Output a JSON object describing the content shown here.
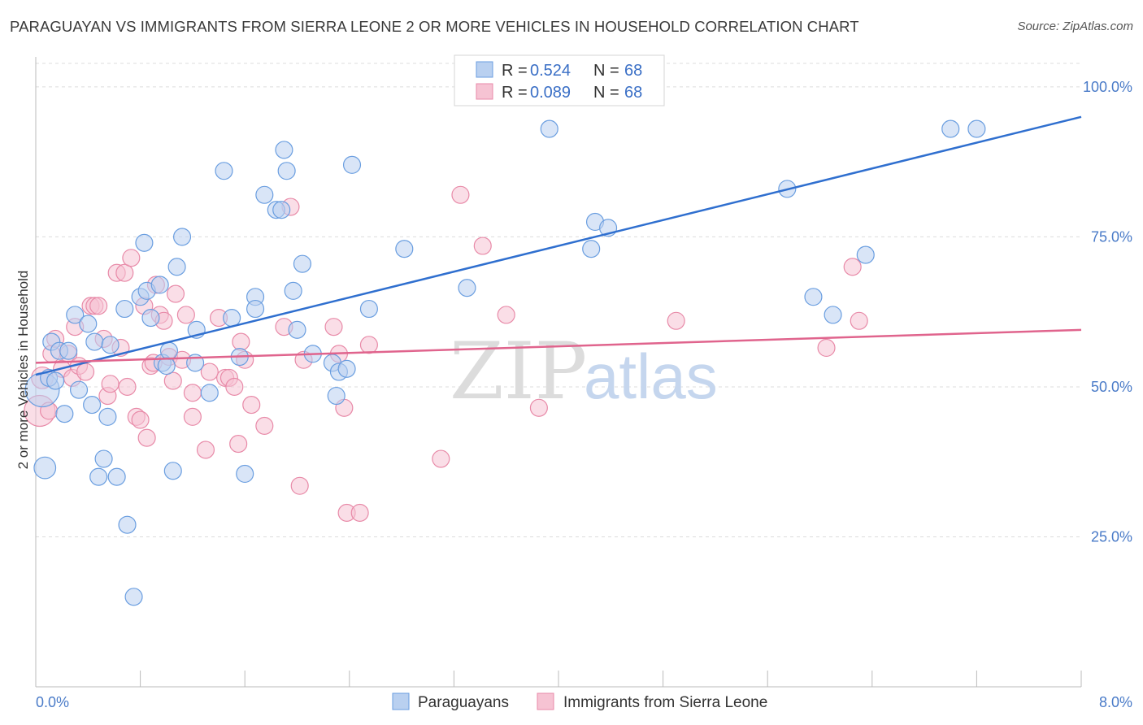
{
  "title": "PARAGUAYAN VS IMMIGRANTS FROM SIERRA LEONE 2 OR MORE VEHICLES IN HOUSEHOLD CORRELATION CHART",
  "source": "Source: ZipAtlas.com",
  "watermark": {
    "zip": "ZIP",
    "atlas": "atlas"
  },
  "colors": {
    "blue": "#6a9ee0",
    "blue_fill": "#b9d0f0",
    "blue_line": "#2f6fcf",
    "pink": "#e88aa8",
    "pink_fill": "#f6c3d3",
    "pink_line": "#e0648d",
    "axis_text": "#4a7bc8",
    "grid": "#d9d9d9"
  },
  "legend": {
    "items": [
      {
        "r_label": "R =",
        "r_value": "0.524",
        "n_label": "N =",
        "n_value": "68"
      },
      {
        "r_label": "R =",
        "r_value": "0.089",
        "n_label": "N =",
        "n_value": "68"
      }
    ]
  },
  "bottom_legend": [
    "Paraguayans",
    "Immigrants from Sierra Leone"
  ],
  "chart_data": {
    "type": "scatter",
    "title": "PARAGUAYAN VS IMMIGRANTS FROM SIERRA LEONE 2 OR MORE VEHICLES IN HOUSEHOLD CORRELATION CHART",
    "xlabel": "",
    "ylabel": "2 or more Vehicles in Household",
    "xlim": [
      0,
      8
    ],
    "ylim": [
      0,
      105
    ],
    "x_tick_labels": [
      "0.0%",
      "8.0%"
    ],
    "y_ticks": [
      25,
      50,
      75,
      100
    ],
    "y_tick_labels": [
      "25.0%",
      "50.0%",
      "75.0%",
      "100.0%"
    ],
    "grid": true,
    "legend_position": "top-center",
    "series": [
      {
        "name": "Paraguayans",
        "color": "#6a9ee0",
        "trend": {
          "x": [
            0,
            8
          ],
          "y": [
            52.0,
            95.0
          ]
        },
        "points": [
          [
            0.05,
            49.5,
            22
          ],
          [
            0.07,
            36.5,
            14
          ],
          [
            0.1,
            51.5,
            11
          ],
          [
            0.12,
            57.5,
            11
          ],
          [
            0.15,
            51,
            11
          ],
          [
            0.18,
            56,
            11
          ],
          [
            0.22,
            45.5,
            11
          ],
          [
            0.25,
            56,
            11
          ],
          [
            0.3,
            62,
            11
          ],
          [
            0.33,
            49.5,
            11
          ],
          [
            0.4,
            60.5,
            11
          ],
          [
            0.43,
            47,
            11
          ],
          [
            0.45,
            57.5,
            11
          ],
          [
            0.48,
            35,
            11
          ],
          [
            0.52,
            38,
            11
          ],
          [
            0.55,
            45,
            11
          ],
          [
            0.57,
            57,
            11
          ],
          [
            0.62,
            35,
            11
          ],
          [
            0.68,
            63,
            11
          ],
          [
            0.7,
            27,
            11
          ],
          [
            0.75,
            15,
            11
          ],
          [
            0.8,
            65,
            11
          ],
          [
            0.83,
            74,
            11
          ],
          [
            0.85,
            66,
            11
          ],
          [
            0.88,
            61.5,
            11
          ],
          [
            0.95,
            67,
            11
          ],
          [
            0.97,
            54,
            11
          ],
          [
            1.0,
            53.5,
            11
          ],
          [
            1.02,
            56,
            11
          ],
          [
            1.05,
            36,
            11
          ],
          [
            1.08,
            70,
            11
          ],
          [
            1.12,
            75,
            11
          ],
          [
            1.22,
            54,
            11
          ],
          [
            1.23,
            59.5,
            11
          ],
          [
            1.33,
            49,
            11
          ],
          [
            1.44,
            86,
            11
          ],
          [
            1.5,
            61.5,
            11
          ],
          [
            1.56,
            55,
            11
          ],
          [
            1.6,
            35.5,
            11
          ],
          [
            1.68,
            65,
            11
          ],
          [
            1.68,
            63,
            11
          ],
          [
            1.75,
            82,
            11
          ],
          [
            1.84,
            79.5,
            11
          ],
          [
            1.88,
            79.5,
            11
          ],
          [
            1.9,
            89.5,
            11
          ],
          [
            1.92,
            86,
            11
          ],
          [
            1.97,
            66,
            11
          ],
          [
            2.0,
            59.5,
            11
          ],
          [
            2.04,
            70.5,
            11
          ],
          [
            2.12,
            55.5,
            11
          ],
          [
            2.27,
            54,
            11
          ],
          [
            2.3,
            48.5,
            11
          ],
          [
            2.32,
            52.5,
            11
          ],
          [
            2.38,
            53,
            11
          ],
          [
            2.42,
            87,
            11
          ],
          [
            2.55,
            63,
            11
          ],
          [
            2.82,
            73,
            11
          ],
          [
            3.3,
            66.5,
            11
          ],
          [
            3.93,
            93,
            11
          ],
          [
            4.28,
            77.5,
            11
          ],
          [
            4.38,
            76.5,
            11
          ],
          [
            4.25,
            73,
            11
          ],
          [
            5.75,
            83,
            11
          ],
          [
            5.95,
            65,
            11
          ],
          [
            6.1,
            62,
            11
          ],
          [
            6.35,
            72,
            11
          ],
          [
            7.0,
            93,
            11
          ],
          [
            7.2,
            93,
            11
          ]
        ]
      },
      {
        "name": "Immigrants from Sierra Leone",
        "color": "#e88aa8",
        "trend": {
          "x": [
            0,
            8
          ],
          "y": [
            54.0,
            59.5
          ]
        },
        "points": [
          [
            0.03,
            46,
            20
          ],
          [
            0.05,
            51.5,
            14
          ],
          [
            0.1,
            46,
            11
          ],
          [
            0.12,
            55.5,
            11
          ],
          [
            0.15,
            58,
            11
          ],
          [
            0.2,
            53,
            11
          ],
          [
            0.25,
            55.5,
            11
          ],
          [
            0.28,
            51.5,
            11
          ],
          [
            0.3,
            60,
            11
          ],
          [
            0.33,
            53.5,
            11
          ],
          [
            0.38,
            52.5,
            11
          ],
          [
            0.42,
            63.5,
            11
          ],
          [
            0.45,
            63.5,
            11
          ],
          [
            0.48,
            63.5,
            11
          ],
          [
            0.52,
            58,
            11
          ],
          [
            0.55,
            48.5,
            11
          ],
          [
            0.57,
            50.5,
            11
          ],
          [
            0.62,
            69,
            11
          ],
          [
            0.65,
            56.5,
            11
          ],
          [
            0.68,
            69,
            11
          ],
          [
            0.7,
            50,
            11
          ],
          [
            0.73,
            71.5,
            11
          ],
          [
            0.77,
            45,
            11
          ],
          [
            0.8,
            44.5,
            11
          ],
          [
            0.83,
            63.5,
            11
          ],
          [
            0.85,
            41.5,
            11
          ],
          [
            0.88,
            53.5,
            11
          ],
          [
            0.9,
            54,
            11
          ],
          [
            0.92,
            67,
            11
          ],
          [
            0.95,
            62,
            11
          ],
          [
            0.98,
            61,
            11
          ],
          [
            1.02,
            55,
            11
          ],
          [
            1.05,
            51,
            11
          ],
          [
            1.07,
            65.5,
            11
          ],
          [
            1.12,
            54.5,
            11
          ],
          [
            1.15,
            62,
            11
          ],
          [
            1.2,
            45,
            11
          ],
          [
            1.2,
            49,
            11
          ],
          [
            1.3,
            39.5,
            11
          ],
          [
            1.33,
            52.5,
            11
          ],
          [
            1.4,
            61.5,
            11
          ],
          [
            1.45,
            51.5,
            11
          ],
          [
            1.48,
            51.5,
            11
          ],
          [
            1.52,
            50,
            11
          ],
          [
            1.55,
            40.5,
            11
          ],
          [
            1.57,
            57.5,
            11
          ],
          [
            1.6,
            54.5,
            11
          ],
          [
            1.65,
            47,
            11
          ],
          [
            1.75,
            43.5,
            11
          ],
          [
            1.9,
            60,
            11
          ],
          [
            1.95,
            80,
            11
          ],
          [
            2.02,
            33.5,
            11
          ],
          [
            2.05,
            54.5,
            11
          ],
          [
            2.28,
            60,
            11
          ],
          [
            2.32,
            55.5,
            11
          ],
          [
            2.36,
            46.5,
            11
          ],
          [
            2.38,
            29,
            11
          ],
          [
            2.48,
            29,
            11
          ],
          [
            2.55,
            57,
            11
          ],
          [
            3.1,
            38,
            11
          ],
          [
            3.25,
            82,
            11
          ],
          [
            3.42,
            73.5,
            11
          ],
          [
            3.6,
            62,
            11
          ],
          [
            3.85,
            46.5,
            11
          ],
          [
            4.9,
            61,
            11
          ],
          [
            6.05,
            56.5,
            11
          ],
          [
            6.25,
            70,
            11
          ],
          [
            6.3,
            61,
            11
          ]
        ]
      }
    ]
  }
}
